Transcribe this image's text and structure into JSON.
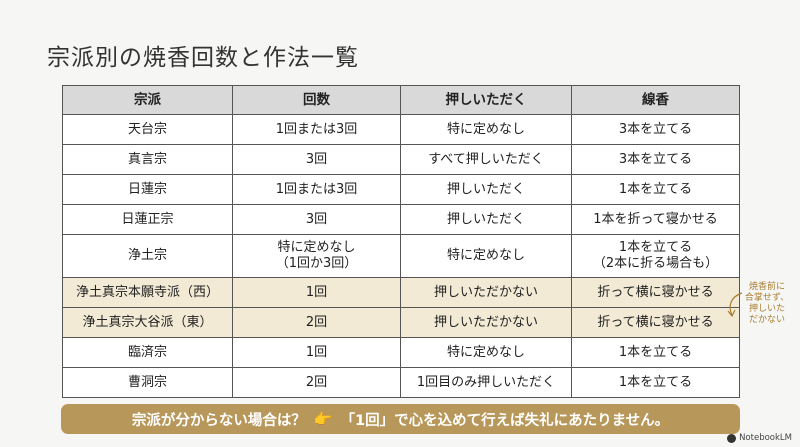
{
  "title": "宗派別の焼香回数と作法一覧",
  "table": {
    "headers": [
      "宗派",
      "回数",
      "押しいただく",
      "線香"
    ],
    "rows": [
      {
        "sect": "天台宗",
        "count": [
          "1回または3回"
        ],
        "press": "特に定めなし",
        "incense": [
          "3本を立てる"
        ],
        "highlight": false
      },
      {
        "sect": "真言宗",
        "count": [
          "3回"
        ],
        "press": "すべて押しいただく",
        "incense": [
          "3本を立てる"
        ],
        "highlight": false
      },
      {
        "sect": "日蓮宗",
        "count": [
          "1回または3回"
        ],
        "press": "押しいただく",
        "incense": [
          "1本を立てる"
        ],
        "highlight": false
      },
      {
        "sect": "日蓮正宗",
        "count": [
          "3回"
        ],
        "press": "押しいただく",
        "incense": [
          "1本を折って寝かせる"
        ],
        "highlight": false
      },
      {
        "sect": "浄土宗",
        "count": [
          "特に定めなし",
          "（1回か3回）"
        ],
        "press": "特に定めなし",
        "incense": [
          "1本を立てる",
          "（2本に折る場合も）"
        ],
        "highlight": false
      },
      {
        "sect": "浄土真宗本願寺派（西）",
        "count": [
          "1回"
        ],
        "press": "押しいただかない",
        "incense": [
          "折って横に寝かせる"
        ],
        "highlight": true
      },
      {
        "sect": "浄土真宗大谷派（東）",
        "count": [
          "2回"
        ],
        "press": "押しいただかない",
        "incense": [
          "折って横に寝かせる"
        ],
        "highlight": true
      },
      {
        "sect": "臨済宗",
        "count": [
          "1回"
        ],
        "press": "特に定めなし",
        "incense": [
          "1本を立てる"
        ],
        "highlight": false
      },
      {
        "sect": "曹洞宗",
        "count": [
          "2回"
        ],
        "press": "1回目のみ押しいただく",
        "incense": [
          "1本を立てる"
        ],
        "highlight": false
      }
    ]
  },
  "side_note": [
    "焼香前に",
    "合掌せず、",
    "押しいた",
    "だかない"
  ],
  "banner": {
    "question": "宗派が分からない場合は？",
    "icon": "pointing-hand-icon",
    "answer": "「1回」で心を込めて行えば失礼にあたりません。"
  },
  "logo": "NotebookLM",
  "colors": {
    "highlight_row": "#f2ead5",
    "banner": "#b8985a",
    "accent_note": "#a87f32",
    "header_bg": "#d9d9d9"
  }
}
